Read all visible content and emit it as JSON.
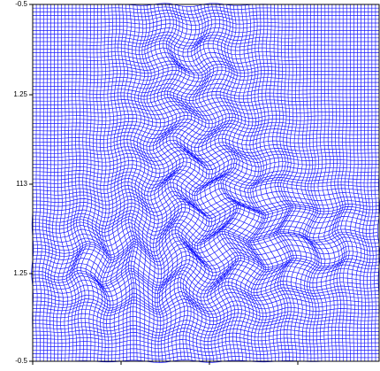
{
  "plot": {
    "y_axis_labels": [
      "-0.5",
      "1.25",
      "113",
      "1.25",
      "-0.5"
    ]
  }
}
